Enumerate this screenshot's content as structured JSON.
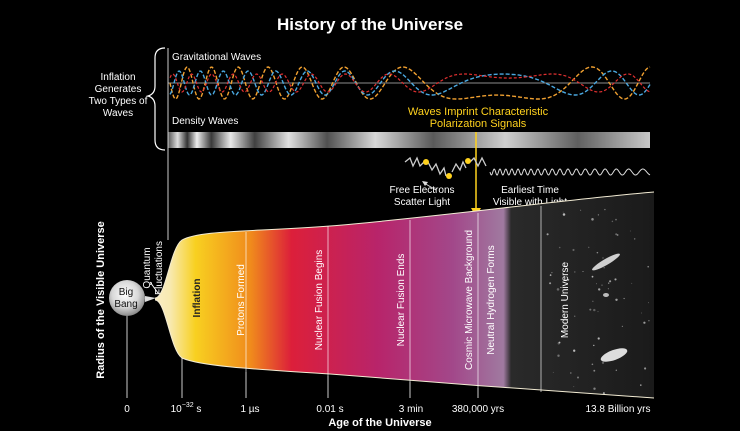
{
  "title": "History of the Universe",
  "side_label_lines": [
    "Inflation",
    "Generates",
    "Two Types of",
    "Waves"
  ],
  "wave_labels": {
    "gravitational": "Gravitational Waves",
    "density": "Density Waves"
  },
  "polarization_lines": [
    "Waves Imprint Characteristic",
    "Polarization Signals"
  ],
  "scatter_lines": [
    "Free Electrons",
    "Scatter Light"
  ],
  "earliest_lines": [
    "Earliest Time",
    "Visible with Light"
  ],
  "quantum_lines": [
    "Quantum",
    "Fluctuations"
  ],
  "big_bang_lines": [
    "Big",
    "Bang"
  ],
  "eras": [
    "Inflation",
    "Protons Formed",
    "Nuclear Fusion Begins",
    "Nuclear Fusion Ends",
    "Cosmic Microwave Background",
    "Neutral Hydrogen Forms",
    "Modern Universe"
  ],
  "x_ticks": [
    {
      "label": "0"
    },
    {
      "label": "10",
      "sup": "−32",
      "suffix": " s"
    },
    {
      "label": "1 µs"
    },
    {
      "label": "0.01 s"
    },
    {
      "label": "3 min"
    },
    {
      "label": "380,000 yrs"
    },
    {
      "label": "13.8 Billion yrs"
    }
  ],
  "x_axis_title": "Age of the Universe",
  "y_axis_title": "Radius of the Visible Universe",
  "colors": {
    "gravitational_wave_orange": "#f0a030",
    "gravitational_wave_blue": "#4aa8e0",
    "gravitational_wave_red": "#e03030",
    "annotation_yellow": "#ffd21e",
    "inflation_cream": "#f8ecc0",
    "protons_yellow": "#f7c21a",
    "fusion_red": "#d91e3a",
    "fusion_magenta": "#b0286e",
    "cmb_purple": "#9a6a9e",
    "modern_dark": "#1c1c1c"
  }
}
